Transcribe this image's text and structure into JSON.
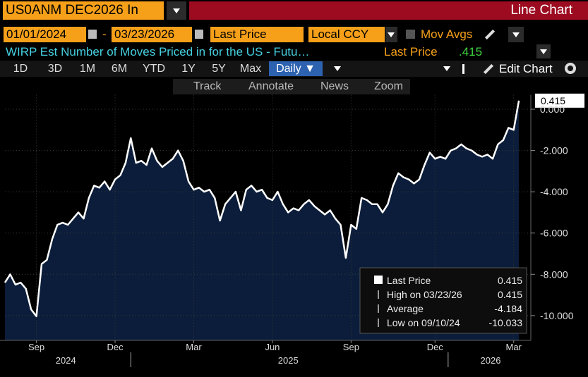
{
  "toolbar": {
    "security": "US0ANM DEC2026 In",
    "panel_title": "Line Chart",
    "start_date": "01/01/2024",
    "date_sep": "-",
    "end_date": "03/23/2026",
    "field": "Last Price",
    "currency": "Local CCY",
    "mov_avgs": "Mov Avgs",
    "description": "WIRP Est Number of Moves Priced in for the US - Futu…",
    "last_label": "Last Price",
    "last_value": ".415",
    "periods": [
      "1D",
      "3D",
      "1M",
      "6M",
      "YTD",
      "1Y",
      "5Y",
      "Max"
    ],
    "frequency": "Daily ▼",
    "edit": "Edit Chart",
    "tools": [
      "Track",
      "Annotate",
      "News",
      "Zoom"
    ]
  },
  "legend": {
    "rows": [
      [
        "Last Price",
        "0.415"
      ],
      [
        "High on 03/23/26",
        "0.415"
      ],
      [
        "Average",
        "-4.184"
      ],
      [
        "Low on 09/10/24",
        "-10.033"
      ]
    ]
  },
  "chart_data": {
    "type": "line",
    "color": "#ffffff",
    "fill": "#0b1d3a",
    "values": [
      -8.4,
      -8.0,
      -8.5,
      -8.4,
      -8.7,
      -9.7,
      -10.033,
      -7.5,
      -7.3,
      -6.3,
      -5.6,
      -5.5,
      -5.6,
      -5.3,
      -5.0,
      -5.3,
      -4.3,
      -3.7,
      -3.8,
      -3.5,
      -3.9,
      -3.4,
      -3.2,
      -2.6,
      -1.4,
      -2.6,
      -2.5,
      -2.7,
      -1.9,
      -2.5,
      -2.8,
      -2.6,
      -2.4,
      -2.0,
      -2.5,
      -3.5,
      -3.9,
      -3.8,
      -4.0,
      -3.9,
      -4.3,
      -5.4,
      -4.6,
      -4.3,
      -4.0,
      -4.9,
      -3.9,
      -3.7,
      -4.0,
      -3.9,
      -4.3,
      -4.4,
      -4.0,
      -4.6,
      -5.0,
      -4.8,
      -4.9,
      -4.6,
      -4.4,
      -4.7,
      -4.9,
      -5.1,
      -4.9,
      -5.3,
      -5.6,
      -7.2,
      -5.6,
      -5.8,
      -4.3,
      -4.4,
      -4.6,
      -4.6,
      -5.0,
      -4.6,
      -3.7,
      -3.1,
      -3.3,
      -3.4,
      -3.6,
      -3.4,
      -2.7,
      -2.1,
      -2.4,
      -2.3,
      -2.4,
      -2.0,
      -1.9,
      -1.7,
      -1.9,
      -2.0,
      -2.2,
      -2.3,
      -2.2,
      -2.4,
      -1.7,
      -1.5,
      -0.9,
      -1.0,
      0.415
    ],
    "xlim": [
      0,
      100
    ],
    "xticks": [
      {
        "value": 6,
        "label": "Sep"
      },
      {
        "value": 21,
        "label": "Dec"
      },
      {
        "value": 36,
        "label": "Mar"
      },
      {
        "value": 51,
        "label": "Jun"
      },
      {
        "value": 66,
        "label": "Sep"
      },
      {
        "value": 82,
        "label": "Dec"
      },
      {
        "value": 97,
        "label": "Mar"
      }
    ],
    "year_ticks": [
      {
        "value": 11.6,
        "label": "2024"
      },
      {
        "value": 54,
        "label": "2025"
      },
      {
        "value": 92.6,
        "label": "2026"
      }
    ],
    "year_breaks": [
      24,
      84.5
    ],
    "ylim": [
      -11.2,
      0.7
    ],
    "yticks": [
      {
        "value": 0,
        "label": "0.000"
      },
      {
        "value": -2,
        "label": "-2.000"
      },
      {
        "value": -4,
        "label": "-4.000"
      },
      {
        "value": -6,
        "label": "-6.000"
      },
      {
        "value": -8,
        "label": "-8.000"
      },
      {
        "value": -10,
        "label": "-10.000"
      }
    ],
    "grid": true
  }
}
